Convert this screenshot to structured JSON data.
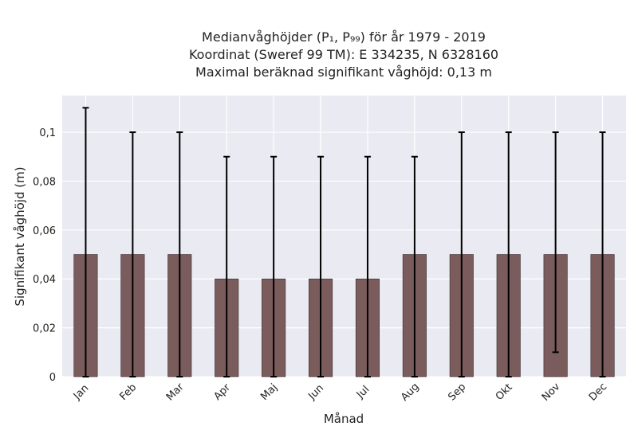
{
  "chart_data": {
    "type": "bar",
    "title_lines": [
      "Medianvåghöjder (P₁, P₉₉) för år 1979 - 2019",
      "Koordinat (Sweref 99 TM): E 334235, N 6328160",
      "Maximal beräknad signifikant våghöjd: 0,13 m"
    ],
    "xlabel": "Månad",
    "ylabel": "Signifikant våghöjd (m)",
    "categories": [
      "Jan",
      "Feb",
      "Mar",
      "Apr",
      "Maj",
      "Jun",
      "Jul",
      "Aug",
      "Sep",
      "Okt",
      "Nov",
      "Dec"
    ],
    "values": [
      0.05,
      0.05,
      0.05,
      0.04,
      0.04,
      0.04,
      0.04,
      0.05,
      0.05,
      0.05,
      0.05,
      0.05
    ],
    "p1": [
      0.0,
      0.0,
      0.0,
      0.0,
      0.0,
      0.0,
      0.0,
      0.0,
      0.0,
      0.0,
      0.01,
      0.0
    ],
    "p99": [
      0.11,
      0.1,
      0.1,
      0.09,
      0.09,
      0.09,
      0.09,
      0.09,
      0.1,
      0.1,
      0.1,
      0.1
    ],
    "yticks": [
      0,
      0.02,
      0.04,
      0.06,
      0.08,
      0.1
    ],
    "ytick_labels": [
      "0",
      "0,02",
      "0,04",
      "0,06",
      "0,08",
      "0,1"
    ],
    "ylim": [
      0,
      0.115
    ],
    "grid": true,
    "bar_color": "#7b5c5c",
    "background": "#eaeaf2",
    "errorbar_color": "#000000"
  }
}
